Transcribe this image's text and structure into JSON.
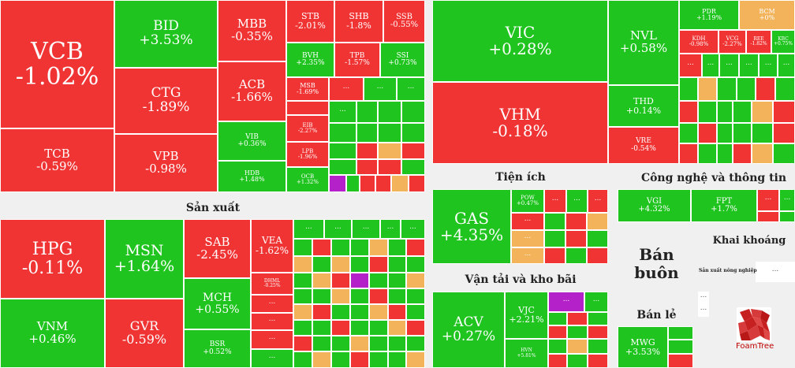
{
  "colors": {
    "up": "#1fc41f",
    "down": "#f03434",
    "ref": "#f2b35a",
    "ceiling": "#b521c9",
    "bg": "#f0f0f0",
    "label": "#222222"
  },
  "dots": "···",
  "sectors": [
    {
      "name": "Sản xuất"
    },
    {
      "name": "Tiện ích"
    },
    {
      "name": "Vận tải và kho bãi"
    },
    {
      "name": "Công nghệ và thông tin"
    },
    {
      "name": "Bán buôn"
    },
    {
      "name": "Bán lẻ"
    },
    {
      "name": "Khai khoáng"
    },
    {
      "name": "Sản xuất nông nghiệp"
    }
  ],
  "chart_data": {
    "type": "treemap",
    "title": "",
    "tiles": [
      {
        "ticker": "VCB",
        "change": "-1.02%",
        "value": -1.02
      },
      {
        "ticker": "TCB",
        "change": "-0.59%",
        "value": -0.59
      },
      {
        "ticker": "BID",
        "change": "+3.53%",
        "value": 3.53
      },
      {
        "ticker": "CTG",
        "change": "-1.89%",
        "value": -1.89
      },
      {
        "ticker": "VPB",
        "change": "-0.98%",
        "value": -0.98
      },
      {
        "ticker": "MBB",
        "change": "-0.35%",
        "value": -0.35
      },
      {
        "ticker": "ACB",
        "change": "-1.66%",
        "value": -1.66
      },
      {
        "ticker": "VIB",
        "change": "+0.36%",
        "value": 0.36
      },
      {
        "ticker": "HDB",
        "change": "+1.48%",
        "value": 1.48
      },
      {
        "ticker": "STB",
        "change": "-2.01%",
        "value": -2.01
      },
      {
        "ticker": "SHB",
        "change": "-1.8%",
        "value": -1.8
      },
      {
        "ticker": "SSB",
        "change": "-0.55%",
        "value": -0.55
      },
      {
        "ticker": "BVH",
        "change": "+2.35%",
        "value": 2.35
      },
      {
        "ticker": "TPB",
        "change": "-1.57%",
        "value": -1.57
      },
      {
        "ticker": "SSI",
        "change": "+0.73%",
        "value": 0.73
      },
      {
        "ticker": "MSB",
        "change": "-1.69%",
        "value": -1.69
      },
      {
        "ticker": "EIB",
        "change": "-2.27%",
        "value": -2.27
      },
      {
        "ticker": "LPB",
        "change": "-1.96%",
        "value": -1.96
      },
      {
        "ticker": "OCB",
        "change": "+1.32%",
        "value": 1.32
      },
      {
        "ticker": "VIC",
        "change": "+0.28%",
        "value": 0.28
      },
      {
        "ticker": "VHM",
        "change": "-0.18%",
        "value": -0.18
      },
      {
        "ticker": "NVL",
        "change": "+0.58%",
        "value": 0.58
      },
      {
        "ticker": "THD",
        "change": "+0.14%",
        "value": 0.14
      },
      {
        "ticker": "VRE",
        "change": "-0.54%",
        "value": -0.54
      },
      {
        "ticker": "PDR",
        "change": "+1.19%",
        "value": 1.19
      },
      {
        "ticker": "BCM",
        "change": "+0%",
        "value": 0
      },
      {
        "ticker": "KDH",
        "change": "-0.98%",
        "value": -0.98
      },
      {
        "ticker": "VCG",
        "change": "-2.27%",
        "value": -2.27
      },
      {
        "ticker": "REE",
        "change": "-1.82%",
        "value": -1.82
      },
      {
        "ticker": "KBC",
        "change": "+0.75%",
        "value": 0.75
      },
      {
        "ticker": "HPG",
        "change": "-0.11%",
        "value": -0.11
      },
      {
        "ticker": "VNM",
        "change": "+0.46%",
        "value": 0.46
      },
      {
        "ticker": "MSN",
        "change": "+1.64%",
        "value": 1.64
      },
      {
        "ticker": "GVR",
        "change": "-0.59%",
        "value": -0.59
      },
      {
        "ticker": "SAB",
        "change": "-2.45%",
        "value": -2.45
      },
      {
        "ticker": "MCH",
        "change": "+0.55%",
        "value": 0.55
      },
      {
        "ticker": "BSR",
        "change": "+0.52%",
        "value": 0.52
      },
      {
        "ticker": "VEA",
        "change": "-1.62%",
        "value": -1.62
      },
      {
        "ticker": "DHML",
        "change": "-0.25%",
        "value": -0.25
      },
      {
        "ticker": "GAS",
        "change": "+4.35%",
        "value": 4.35
      },
      {
        "ticker": "POW",
        "change": "+0.47%",
        "value": 0.47
      },
      {
        "ticker": "ACV",
        "change": "+0.27%",
        "value": 0.27
      },
      {
        "ticker": "VJC",
        "change": "+2.21%",
        "value": 2.21
      },
      {
        "ticker": "HVN",
        "change": "+5.81%",
        "value": 5.81
      },
      {
        "ticker": "VGI",
        "change": "+4.32%",
        "value": 4.32
      },
      {
        "ticker": "FPT",
        "change": "+1.7%",
        "value": 1.7
      },
      {
        "ticker": "MWG",
        "change": "+3.53%",
        "value": 3.53
      }
    ]
  },
  "logo": {
    "name": "TreeMap logo",
    "text": "FoamTree"
  }
}
